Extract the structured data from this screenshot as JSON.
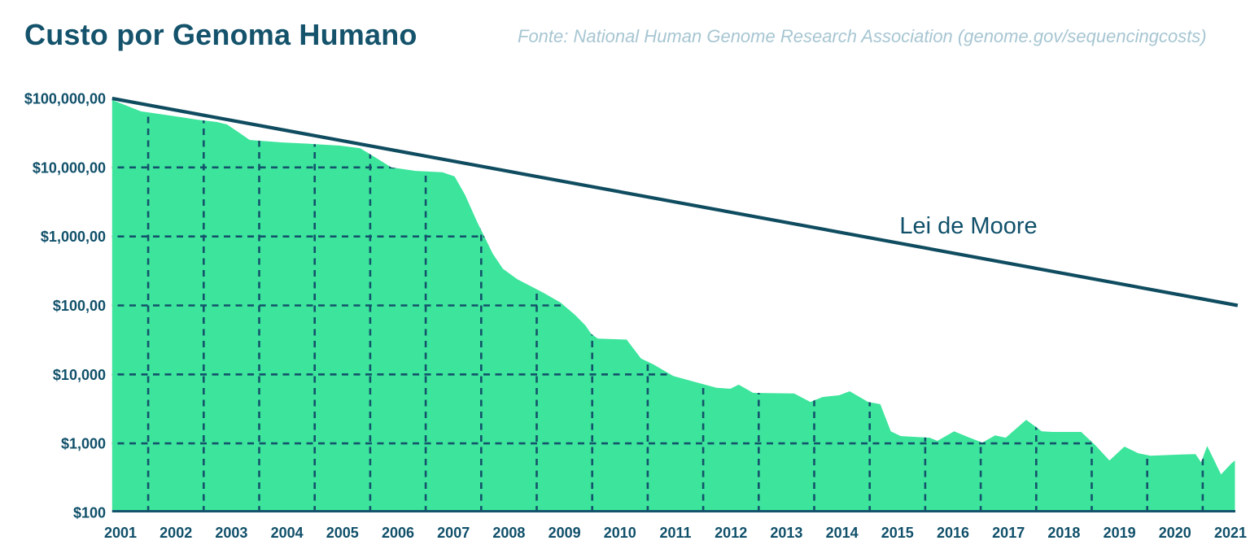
{
  "title": "Custo por Genoma Humano",
  "source_note": "Fonte: National Human Genome Research Association (genome.gov/sequencingcosts)",
  "annotations": {
    "moore_label": "Lei de Moore"
  },
  "colors": {
    "accent_teal": "#10506a",
    "area_green": "#3cE49c",
    "grid_teal": "#14536b",
    "source_gray": "#a7c6d2",
    "background": "#ffffff"
  },
  "chart_data": {
    "type": "area",
    "title": "Custo por Genoma Humano",
    "scale_y": "log",
    "ylim": [
      100,
      100000000
    ],
    "xlim": [
      2000.85,
      2021.3
    ],
    "grid": "dashed, clipped to area fill",
    "x_axis": {
      "years": [
        2001,
        2002,
        2003,
        2004,
        2005,
        2006,
        2007,
        2008,
        2009,
        2010,
        2011,
        2012,
        2013,
        2014,
        2015,
        2016,
        2017,
        2018,
        2019,
        2020,
        2021
      ]
    },
    "y_axis": {
      "ticks": [
        {
          "label": "$100,000,00",
          "value": 100000000
        },
        {
          "label": "$10,000,00",
          "value": 10000000
        },
        {
          "label": "$1,000,00",
          "value": 1000000
        },
        {
          "label": "$100,00",
          "value": 100000
        },
        {
          "label": "$10,000",
          "value": 10000
        },
        {
          "label": "$1,000",
          "value": 1000
        },
        {
          "label": "$100",
          "value": 100
        }
      ]
    },
    "series": [
      {
        "name": "Custo por genoma",
        "type": "area",
        "color": "#3cE49c",
        "points": [
          [
            2000.85,
            95000000
          ],
          [
            2001.37,
            65000000
          ],
          [
            2001.93,
            56000000
          ],
          [
            2002.4,
            49000000
          ],
          [
            2002.74,
            45500000
          ],
          [
            2002.92,
            42000000
          ],
          [
            2003.11,
            33000000
          ],
          [
            2003.33,
            25000000
          ],
          [
            2003.92,
            23000000
          ],
          [
            2004.41,
            22000000
          ],
          [
            2004.95,
            20700000
          ],
          [
            2005.32,
            19000000
          ],
          [
            2005.59,
            14000000
          ],
          [
            2005.88,
            10000000
          ],
          [
            2006.32,
            8900000
          ],
          [
            2006.8,
            8500000
          ],
          [
            2007.02,
            7400000
          ],
          [
            2007.21,
            4000000
          ],
          [
            2007.43,
            1600000
          ],
          [
            2007.71,
            560000
          ],
          [
            2007.89,
            340000
          ],
          [
            2008.15,
            240000
          ],
          [
            2008.39,
            190000
          ],
          [
            2008.64,
            150000
          ],
          [
            2008.93,
            110000
          ],
          [
            2009.19,
            73000
          ],
          [
            2009.38,
            51000
          ],
          [
            2009.48,
            39000
          ],
          [
            2009.6,
            33000
          ],
          [
            2010.12,
            32000
          ],
          [
            2010.38,
            17000
          ],
          [
            2010.6,
            14000
          ],
          [
            2010.96,
            9500
          ],
          [
            2011.37,
            7700
          ],
          [
            2011.74,
            6400
          ],
          [
            2011.99,
            6200
          ],
          [
            2012.14,
            7100
          ],
          [
            2012.4,
            5400
          ],
          [
            2013.14,
            5300
          ],
          [
            2013.43,
            4000
          ],
          [
            2013.65,
            4700
          ],
          [
            2013.95,
            5000
          ],
          [
            2014.14,
            5700
          ],
          [
            2014.47,
            4000
          ],
          [
            2014.69,
            3700
          ],
          [
            2014.88,
            1500
          ],
          [
            2015.06,
            1280
          ],
          [
            2015.58,
            1210
          ],
          [
            2015.72,
            1090
          ],
          [
            2016.02,
            1500
          ],
          [
            2016.27,
            1240
          ],
          [
            2016.53,
            1030
          ],
          [
            2016.76,
            1310
          ],
          [
            2016.95,
            1210
          ],
          [
            2017.32,
            2200
          ],
          [
            2017.6,
            1500
          ],
          [
            2017.79,
            1470
          ],
          [
            2018.31,
            1470
          ],
          [
            2018.56,
            950
          ],
          [
            2018.82,
            566
          ],
          [
            2019.09,
            900
          ],
          [
            2019.34,
            720
          ],
          [
            2019.56,
            665
          ],
          [
            2020.11,
            690
          ],
          [
            2020.37,
            700
          ],
          [
            2020.47,
            535
          ],
          [
            2020.58,
            920
          ],
          [
            2020.83,
            356
          ],
          [
            2021.01,
            508
          ],
          [
            2021.08,
            566
          ]
        ]
      },
      {
        "name": "Lei de Moore",
        "type": "line",
        "color": "#0f4c60",
        "points": [
          [
            2000.85,
            100000000
          ],
          [
            2021.13,
            100000
          ]
        ]
      }
    ]
  }
}
